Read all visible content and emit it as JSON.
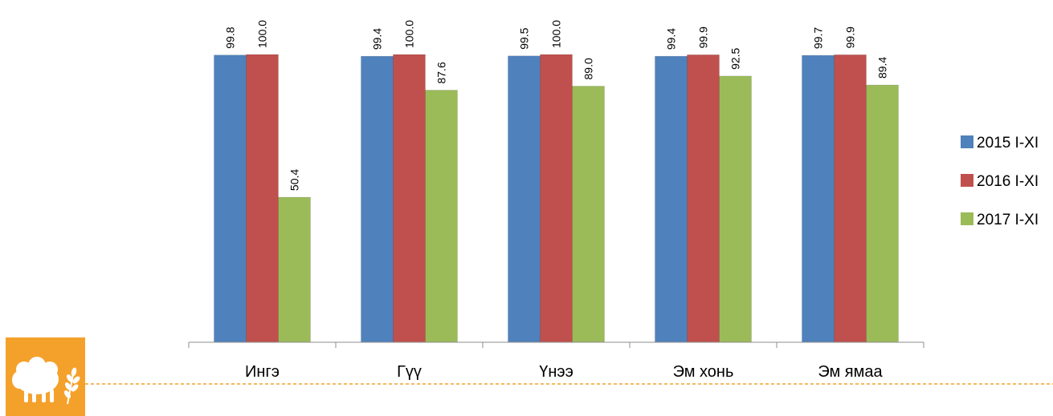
{
  "chart_data": {
    "type": "bar",
    "categories": [
      "Ингэ",
      "Гүү",
      "Үнээ",
      "Эм хонь",
      "Эм ямаа"
    ],
    "series": [
      {
        "name": "2015 I-XI",
        "color": "#4f81bd",
        "values": [
          99.8,
          99.4,
          99.5,
          99.4,
          99.7
        ],
        "labels": [
          "99.8",
          "99.4",
          "99.5",
          "99.4",
          "99.7"
        ]
      },
      {
        "name": "2016 I-XI",
        "color": "#c0504d",
        "values": [
          100.0,
          100.0,
          100.0,
          99.9,
          99.9
        ],
        "labels": [
          "100.0",
          "100.0",
          "100.0",
          "99.9",
          "99.9"
        ]
      },
      {
        "name": "2017 I-XI",
        "color": "#9bbb59",
        "values": [
          50.4,
          87.6,
          89.0,
          92.5,
          89.4
        ],
        "labels": [
          "50.4",
          "87.6",
          "89.0",
          "92.5",
          "89.4"
        ]
      }
    ],
    "ylim": [
      0,
      100
    ],
    "grid": false,
    "legend": "right",
    "data_labels": "rotated-vertical"
  },
  "decor": {
    "badge_icon": "sheep-icon",
    "badge_color": "#f4a12b",
    "divider_color": "#f4a12b"
  }
}
